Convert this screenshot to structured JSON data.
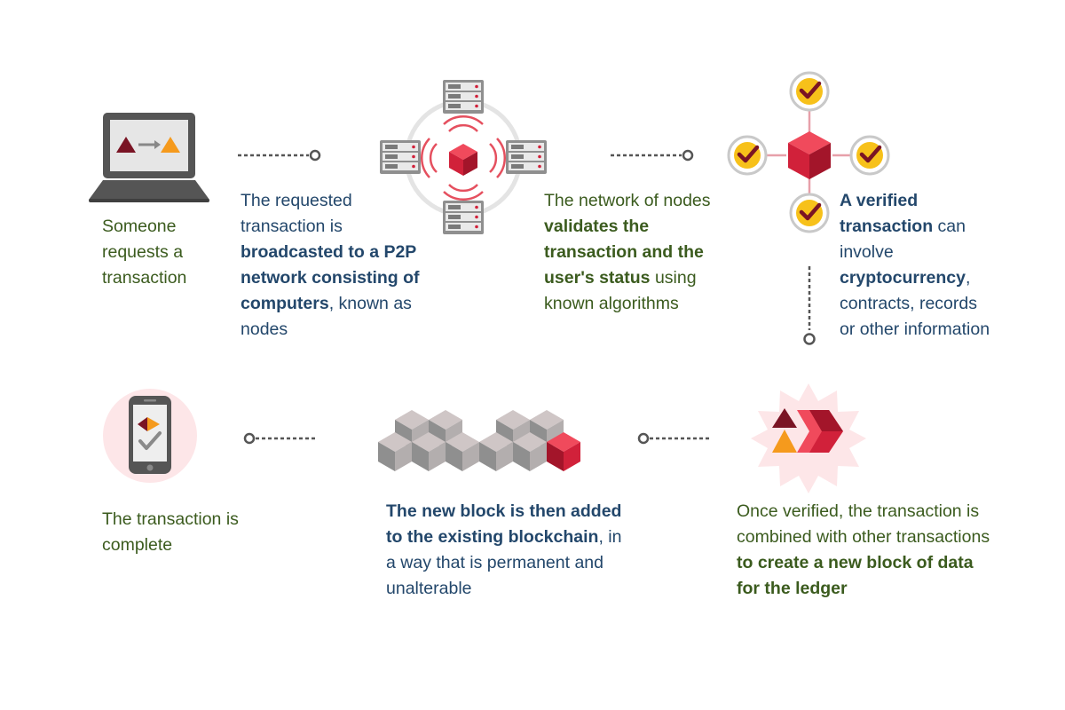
{
  "steps": [
    {
      "id": "step1",
      "color": "#3b5b1e",
      "icon": "laptop-transfer-icon",
      "segments": [
        {
          "text": "Someone requests a transaction",
          "bold": false
        }
      ]
    },
    {
      "id": "step2",
      "color": "#23476b",
      "icon": "p2p-network-icon",
      "segments": [
        {
          "text": "The requested transaction is ",
          "bold": false
        },
        {
          "text": "broadcasted to a P2P network consisting of computers",
          "bold": true
        },
        {
          "text": ", known as nodes",
          "bold": false
        }
      ]
    },
    {
      "id": "step3",
      "color": "#3b5b1e",
      "icon": "validation-network-icon",
      "segments": [
        {
          "text": "The network of nodes ",
          "bold": false
        },
        {
          "text": "validates the transaction and the user's status",
          "bold": true
        },
        {
          "text": " using known algorithms",
          "bold": false
        }
      ]
    },
    {
      "id": "step4",
      "color": "#23476b",
      "icon": "verified-transaction-icon",
      "segments": [
        {
          "text": "A verified transaction",
          "bold": true
        },
        {
          "text": " can involve ",
          "bold": false
        },
        {
          "text": "cryptocurrency",
          "bold": true
        },
        {
          "text": ", contracts, records or other information",
          "bold": false
        }
      ]
    },
    {
      "id": "step5",
      "color": "#3b5b1e",
      "icon": "new-block-starburst-icon",
      "segments": [
        {
          "text": "Once verified, the transaction is combined with other transactions ",
          "bold": false
        },
        {
          "text": "to create a new block of data for the ledger",
          "bold": true
        }
      ]
    },
    {
      "id": "step6",
      "color": "#23476b",
      "icon": "blockchain-cubes-icon",
      "segments": [
        {
          "text": "The new block is then added to the existing blockchain",
          "bold": true
        },
        {
          "text": ", in a way that is permanent and unalterable",
          "bold": false
        }
      ]
    },
    {
      "id": "step7",
      "color": "#3b5b1e",
      "icon": "phone-complete-icon",
      "segments": [
        {
          "text": "The transaction is complete",
          "bold": false
        }
      ]
    }
  ],
  "colors": {
    "accent_red": "#d1213a",
    "accent_orange": "#f59a1d",
    "check_yellow": "#f7c11a",
    "dark_maroon": "#7a1424",
    "device_gray": "#555555",
    "cube_gray": "#a9a9a9",
    "connector_gray": "#555555"
  }
}
